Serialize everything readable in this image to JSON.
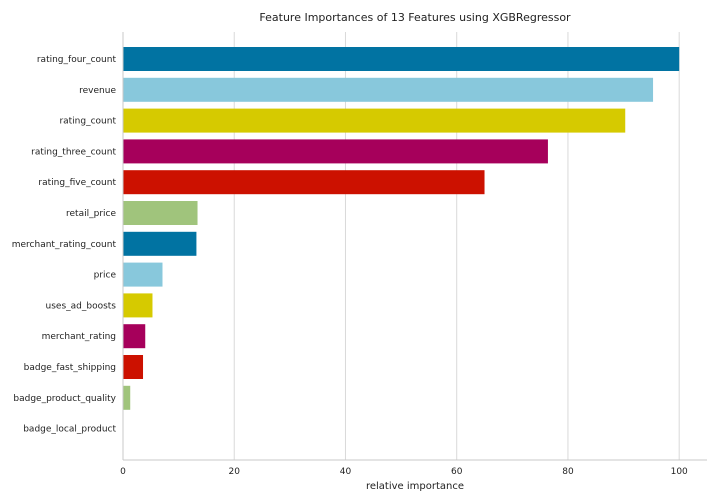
{
  "chart_data": {
    "type": "bar",
    "orientation": "horizontal",
    "title": "Feature Importances of 13 Features using XGBRegressor",
    "xlabel": "relative importance",
    "ylabel": "",
    "xlim": [
      0,
      105
    ],
    "xticks": [
      0,
      20,
      40,
      60,
      80,
      100
    ],
    "grid": true,
    "legend": "none",
    "categories": [
      "rating_four_count",
      "revenue",
      "rating_count",
      "rating_three_count",
      "rating_five_count",
      "retail_price",
      "merchant_rating_count",
      "price",
      "uses_ad_boosts",
      "merchant_rating",
      "badge_fast_shipping",
      "badge_product_quality",
      "badge_local_product"
    ],
    "values": [
      100,
      95.3,
      90.3,
      76.4,
      65.0,
      13.4,
      13.2,
      7.1,
      5.3,
      4.0,
      3.6,
      1.3,
      0
    ],
    "colors": [
      "#0173a2",
      "#88c8dc",
      "#d6ca00",
      "#a6005b",
      "#cc1100",
      "#a0c47c",
      "#0173a2",
      "#88c8dc",
      "#d6ca00",
      "#a6005b",
      "#cc1100",
      "#a0c47c",
      "#0173a2"
    ]
  }
}
